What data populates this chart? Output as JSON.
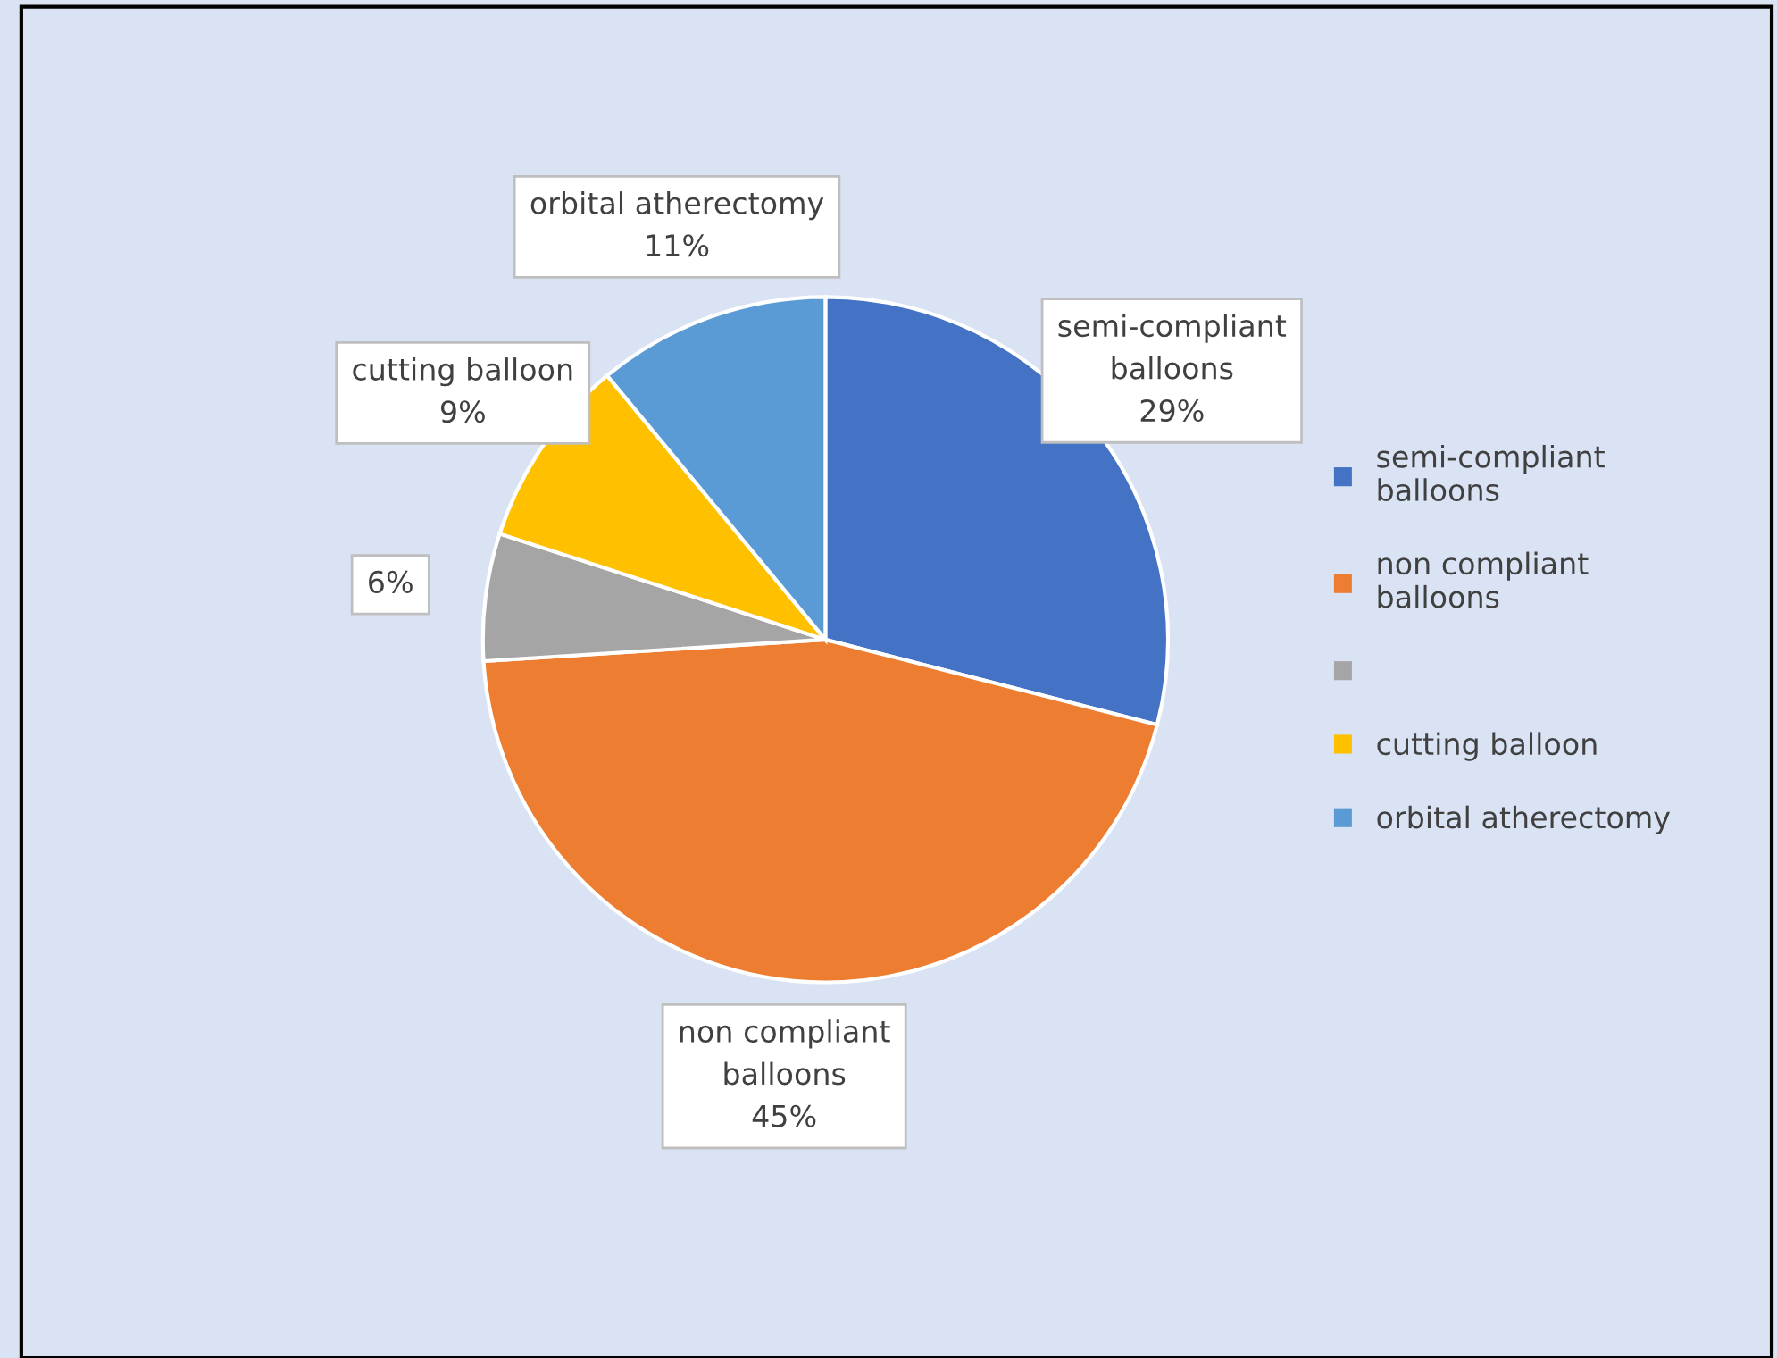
{
  "chart_data": {
    "type": "pie",
    "categories": [
      "semi-compliant\nballoons",
      "non compliant\nballoons",
      null,
      "cutting balloon",
      "orbital atherectomy"
    ],
    "values": [
      29,
      45,
      6,
      9,
      11
    ],
    "colors": [
      "#4472c4",
      "#ed7d31",
      "#a5a5a5",
      "#ffc000",
      "#5b9bd5"
    ],
    "value_labels": [
      "29%",
      "45%",
      "6%",
      "9%",
      "11%"
    ],
    "legend": "right"
  }
}
